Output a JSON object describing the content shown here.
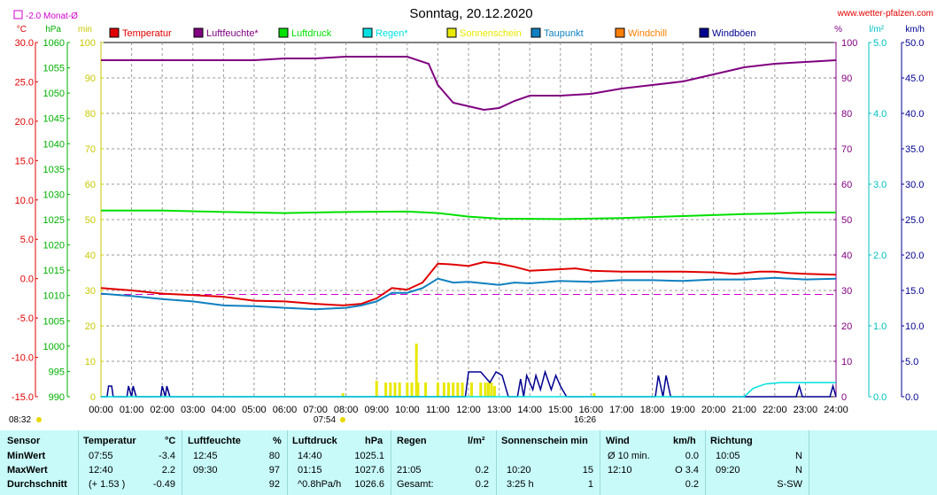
{
  "header": {
    "title": "Sonntag, 20.12.2020",
    "site": "www.wetter-pfalzen.com",
    "monat_label": "-2.0 Monat-Ø"
  },
  "axes_units": {
    "temp": "°C",
    "pressure": "hPa",
    "min": "min",
    "pct": "%",
    "rain": "l/m²",
    "wind": "km/h"
  },
  "legend": [
    {
      "label": "Temperatur",
      "color": "#e00000"
    },
    {
      "label": "Luftfeuchte*",
      "color": "#800080"
    },
    {
      "label": "Luftdruck",
      "color": "#00e000"
    },
    {
      "label": "Regen*",
      "color": "#00e0e0"
    },
    {
      "label": "Sonnenschein",
      "color": "#e8e800"
    },
    {
      "label": "Taupunkt",
      "color": "#1080c0"
    },
    {
      "label": "Windchill",
      "color": "#ff8000"
    },
    {
      "label": "Windböen",
      "color": "#000090"
    }
  ],
  "markers": {
    "sunrise": "07:54",
    "sunset": "16:26",
    "extra_time": "08:32"
  },
  "chart_data": {
    "type": "line",
    "title": "Sonntag, 20.12.2020",
    "x_ticks": [
      "00:00",
      "01:00",
      "02:00",
      "03:00",
      "04:00",
      "05:00",
      "06:00",
      "07:00",
      "08:00",
      "09:00",
      "10:00",
      "11:00",
      "12:00",
      "13:00",
      "14:00",
      "15:00",
      "16:00",
      "17:00",
      "18:00",
      "19:00",
      "20:00",
      "21:00",
      "22:00",
      "23:00",
      "24:00"
    ],
    "y_axes": {
      "temp": {
        "label": "°C",
        "ticks": [
          "30.0",
          "25.0",
          "20.0",
          "15.0",
          "10.0",
          "5.0",
          "0.0",
          "-5.0",
          "-10.0",
          "-15.0"
        ],
        "range": [
          -15,
          30
        ]
      },
      "pressure": {
        "label": "hPa",
        "ticks": [
          "1060",
          "1055",
          "1050",
          "1045",
          "1040",
          "1035",
          "1030",
          "1025",
          "1020",
          "1015",
          "1010",
          "1005",
          "1000",
          "995",
          "990"
        ],
        "range": [
          990,
          1060
        ]
      },
      "minutes": {
        "label": "min",
        "ticks": [
          "100",
          "90",
          "80",
          "70",
          "60",
          "50",
          "40",
          "30",
          "20",
          "10",
          "0"
        ],
        "range": [
          0,
          100
        ]
      },
      "humidity": {
        "label": "%",
        "ticks": [
          "100",
          "90",
          "80",
          "70",
          "60",
          "50",
          "40",
          "30",
          "20",
          "10",
          "0"
        ],
        "range": [
          0,
          100
        ]
      },
      "rain": {
        "label": "l/m²",
        "ticks": [
          "5.0",
          "4.0",
          "3.0",
          "2.0",
          "1.0",
          "0.0"
        ],
        "range": [
          0,
          5
        ]
      },
      "wind": {
        "label": "km/h",
        "ticks": [
          "50.0",
          "45.0",
          "40.0",
          "35.0",
          "30.0",
          "25.0",
          "20.0",
          "15.0",
          "10.0",
          "5.0",
          "0.0"
        ],
        "range": [
          0,
          50
        ]
      }
    },
    "monthly_avg_temp": -2.0,
    "series": [
      {
        "name": "Temperatur",
        "axis": "temp",
        "color": "#e00000",
        "points": [
          [
            0,
            -1.2
          ],
          [
            1,
            -1.5
          ],
          [
            2,
            -1.9
          ],
          [
            3,
            -2.1
          ],
          [
            4,
            -2.3
          ],
          [
            5,
            -2.8
          ],
          [
            6,
            -2.9
          ],
          [
            7,
            -3.2
          ],
          [
            7.9,
            -3.4
          ],
          [
            8.5,
            -3.2
          ],
          [
            9,
            -2.5
          ],
          [
            9.5,
            -1.2
          ],
          [
            10,
            -1.4
          ],
          [
            10.5,
            -0.5
          ],
          [
            11,
            1.9
          ],
          [
            11.5,
            1.8
          ],
          [
            12,
            1.6
          ],
          [
            12.5,
            2.1
          ],
          [
            13,
            1.9
          ],
          [
            13.5,
            1.5
          ],
          [
            14,
            1.0
          ],
          [
            15,
            1.2
          ],
          [
            15.5,
            1.3
          ],
          [
            16,
            1.0
          ],
          [
            17,
            0.9
          ],
          [
            18,
            0.9
          ],
          [
            19,
            0.9
          ],
          [
            20,
            0.8
          ],
          [
            20.7,
            0.6
          ],
          [
            21.5,
            0.9
          ],
          [
            22,
            0.9
          ],
          [
            22.5,
            0.7
          ],
          [
            23,
            0.6
          ],
          [
            24,
            0.5
          ]
        ]
      },
      {
        "name": "Taupunkt",
        "axis": "temp",
        "color": "#1080c0",
        "points": [
          [
            0,
            -1.9
          ],
          [
            1,
            -2.2
          ],
          [
            2,
            -2.6
          ],
          [
            3,
            -2.9
          ],
          [
            4,
            -3.4
          ],
          [
            5,
            -3.5
          ],
          [
            6,
            -3.7
          ],
          [
            7,
            -3.9
          ],
          [
            8,
            -3.7
          ],
          [
            8.5,
            -3.4
          ],
          [
            9,
            -2.9
          ],
          [
            9.5,
            -1.8
          ],
          [
            10,
            -1.8
          ],
          [
            10.5,
            -1.2
          ],
          [
            11,
            0.0
          ],
          [
            11.5,
            -0.5
          ],
          [
            12,
            -0.4
          ],
          [
            12.5,
            -0.6
          ],
          [
            13,
            -0.8
          ],
          [
            13.5,
            -0.5
          ],
          [
            14,
            -0.6
          ],
          [
            15,
            -0.3
          ],
          [
            16,
            -0.4
          ],
          [
            17,
            -0.2
          ],
          [
            18,
            -0.2
          ],
          [
            19,
            -0.3
          ],
          [
            20,
            -0.1
          ],
          [
            21,
            -0.1
          ],
          [
            22,
            0.1
          ],
          [
            23,
            -0.1
          ],
          [
            24,
            0.0
          ]
        ]
      },
      {
        "name": "Luftfeuchte*",
        "axis": "humidity",
        "color": "#800080",
        "points": [
          [
            0,
            95
          ],
          [
            1,
            95
          ],
          [
            2,
            95
          ],
          [
            3,
            95
          ],
          [
            4,
            95
          ],
          [
            5,
            95
          ],
          [
            6,
            95.5
          ],
          [
            7,
            95.5
          ],
          [
            8,
            96
          ],
          [
            9,
            96
          ],
          [
            10,
            96
          ],
          [
            10.7,
            94
          ],
          [
            11,
            88
          ],
          [
            11.5,
            83
          ],
          [
            12,
            82
          ],
          [
            12.5,
            81
          ],
          [
            13,
            81.5
          ],
          [
            13.5,
            83.5
          ],
          [
            14,
            85
          ],
          [
            15,
            85
          ],
          [
            16,
            85.5
          ],
          [
            17,
            87
          ],
          [
            18,
            88
          ],
          [
            19,
            89
          ],
          [
            20,
            91
          ],
          [
            21,
            93
          ],
          [
            22,
            94
          ],
          [
            23,
            94.5
          ],
          [
            24,
            95
          ]
        ]
      },
      {
        "name": "Luftdruck",
        "axis": "pressure",
        "color": "#00e000",
        "points": [
          [
            0,
            1026.8
          ],
          [
            2,
            1026.8
          ],
          [
            4,
            1026.5
          ],
          [
            6,
            1026.3
          ],
          [
            8,
            1026.5
          ],
          [
            10,
            1026.6
          ],
          [
            11,
            1026.3
          ],
          [
            12,
            1025.6
          ],
          [
            13,
            1025.2
          ],
          [
            15,
            1025.1
          ],
          [
            17,
            1025.3
          ],
          [
            19,
            1025.7
          ],
          [
            21,
            1026.1
          ],
          [
            22,
            1026.2
          ],
          [
            23,
            1026.4
          ],
          [
            24,
            1026.4
          ]
        ]
      },
      {
        "name": "Windböen",
        "axis": "wind",
        "color": "#000090",
        "points": [
          [
            0,
            0
          ],
          [
            0.2,
            0
          ],
          [
            0.25,
            1.5
          ],
          [
            0.35,
            1.5
          ],
          [
            0.4,
            0
          ],
          [
            0.85,
            0
          ],
          [
            0.9,
            1.5
          ],
          [
            1.0,
            0
          ],
          [
            1.05,
            1.5
          ],
          [
            1.15,
            0
          ],
          [
            1.95,
            0
          ],
          [
            2.0,
            1.5
          ],
          [
            2.1,
            0
          ],
          [
            2.15,
            1.5
          ],
          [
            2.25,
            0
          ],
          [
            11.9,
            0
          ],
          [
            12.0,
            3.5
          ],
          [
            12.4,
            3.5
          ],
          [
            12.7,
            2.0
          ],
          [
            12.9,
            3.5
          ],
          [
            13.1,
            3.0
          ],
          [
            13.3,
            0
          ],
          [
            13.6,
            0
          ],
          [
            13.7,
            2.5
          ],
          [
            13.8,
            0
          ],
          [
            13.9,
            3.0
          ],
          [
            14.1,
            1.0
          ],
          [
            14.2,
            3.0
          ],
          [
            14.35,
            1.0
          ],
          [
            14.5,
            3.5
          ],
          [
            14.7,
            1.0
          ],
          [
            14.85,
            3.0
          ],
          [
            15.0,
            1.5
          ],
          [
            15.2,
            0
          ],
          [
            18.1,
            0
          ],
          [
            18.2,
            3.0
          ],
          [
            18.35,
            0
          ],
          [
            18.45,
            3.0
          ],
          [
            18.6,
            0
          ],
          [
            22.7,
            0
          ],
          [
            22.8,
            1.5
          ],
          [
            22.9,
            0
          ],
          [
            23.8,
            0
          ],
          [
            23.9,
            1.5
          ],
          [
            24,
            0
          ]
        ]
      },
      {
        "name": "Regen*",
        "axis": "rain",
        "color": "#00e0e0",
        "points": [
          [
            0,
            0
          ],
          [
            21.0,
            0
          ],
          [
            21.3,
            0.12
          ],
          [
            21.7,
            0.18
          ],
          [
            22.2,
            0.2
          ],
          [
            24,
            0.2
          ]
        ]
      }
    ],
    "sunshine_bars": [
      [
        7.9,
        1
      ],
      [
        9.0,
        4.5
      ],
      [
        9.3,
        4
      ],
      [
        9.45,
        4
      ],
      [
        9.6,
        4
      ],
      [
        9.75,
        4
      ],
      [
        10.0,
        4
      ],
      [
        10.15,
        4
      ],
      [
        10.35,
        4
      ],
      [
        10.6,
        4
      ],
      [
        11.0,
        4
      ],
      [
        11.2,
        4
      ],
      [
        11.35,
        4
      ],
      [
        11.5,
        4
      ],
      [
        11.65,
        4
      ],
      [
        11.8,
        4
      ],
      [
        12.1,
        4
      ],
      [
        12.4,
        4
      ],
      [
        12.55,
        4
      ],
      [
        12.65,
        4
      ],
      [
        12.75,
        4
      ],
      [
        12.85,
        3
      ],
      [
        10.3,
        15
      ],
      [
        16.1,
        1
      ]
    ]
  },
  "stats": {
    "headers": {
      "sensor": "Sensor",
      "temperatur": "Temperatur",
      "temp_unit": "°C",
      "luftfeuchte": "Luftfeuchte",
      "hum_unit": "%",
      "luftdruck": "Luftdruck",
      "press_unit": "hPa",
      "regen": "Regen",
      "rain_unit": "l/m²",
      "sonne": "Sonnenschein min",
      "wind": "Wind",
      "wind_unit": "km/h",
      "richtung": "Richtung"
    },
    "rows": [
      {
        "label": "MinWert",
        "temp_time": "07:55",
        "temp_val": "-3.4",
        "hum_time": "12:45",
        "hum_val": "80",
        "press_time": "14:40",
        "press_val": "1025.1",
        "rain_time": "",
        "rain_val": "",
        "sun_time": "",
        "sun_val": "",
        "wind_time": "Ø 10 min.",
        "wind_val": "0.0",
        "dir_time": "10:05",
        "dir_val": "N"
      },
      {
        "label": "MaxWert",
        "temp_time": "12:40",
        "temp_val": "2.2",
        "hum_time": "09:30",
        "hum_val": "97",
        "press_time": "01:15",
        "press_val": "1027.6",
        "rain_time": "21:05",
        "rain_val": "0.2",
        "sun_time": "10:20",
        "sun_val": "15",
        "wind_time": "12:10",
        "wind_val": "O 3.4",
        "dir_time": "09:20",
        "dir_val": "N"
      },
      {
        "label": "Durchschnitt",
        "temp_time": "(+ 1.53 )",
        "temp_val": "-0.49",
        "hum_time": "",
        "hum_val": "92",
        "press_time": "^0.8hPa/h",
        "press_val": "1026.6",
        "rain_time": "Gesamt:",
        "rain_val": "0.2",
        "sun_time": "3:25 h",
        "sun_val": "1",
        "wind_time": "",
        "wind_val": "0.2",
        "dir_time": "",
        "dir_val": "S-SW"
      }
    ]
  }
}
